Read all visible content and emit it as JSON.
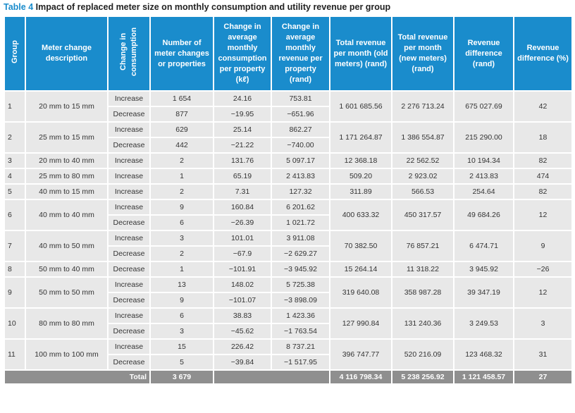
{
  "caption": {
    "label": "Table 4",
    "title": "Impact of replaced meter size on monthly consumption and utility revenue per group"
  },
  "table": {
    "headers": [
      "Group",
      "Meter change description",
      "Change in consumption",
      "Number of meter changes or properties",
      "Change in average monthly consumption per property (kℓ)",
      "Change in average monthly revenue per property (rand)",
      "Total revenue per month (old meters) (rand)",
      "Total revenue per month (new meters) (rand)",
      "Revenue difference (rand)",
      "Revenue difference (%)"
    ],
    "groups": [
      {
        "group": "1",
        "description": "20 mm to 15 mm",
        "changes": [
          {
            "direction": "Increase",
            "count": "1 654",
            "consumption": "24.16",
            "revenue": "753.81"
          },
          {
            "direction": "Decrease",
            "count": "877",
            "consumption": "−19.95",
            "revenue": "−651.96"
          }
        ],
        "total_old": "1 601 685.56",
        "total_new": "2 276 713.24",
        "difference": "675 027.69",
        "difference_pct": "42"
      },
      {
        "group": "2",
        "description": "25 mm to 15 mm",
        "changes": [
          {
            "direction": "Increase",
            "count": "629",
            "consumption": "25.14",
            "revenue": "862.27"
          },
          {
            "direction": "Decrease",
            "count": "442",
            "consumption": "−21.22",
            "revenue": "−740.00"
          }
        ],
        "total_old": "1 171 264.87",
        "total_new": "1 386 554.87",
        "difference": "215 290.00",
        "difference_pct": "18"
      },
      {
        "group": "3",
        "description": "20 mm to 40 mm",
        "changes": [
          {
            "direction": "Increase",
            "count": "2",
            "consumption": "131.76",
            "revenue": "5 097.17"
          }
        ],
        "total_old": "12 368.18",
        "total_new": "22 562.52",
        "difference": "10 194.34",
        "difference_pct": "82"
      },
      {
        "group": "4",
        "description": "25 mm to 80 mm",
        "changes": [
          {
            "direction": "Increase",
            "count": "1",
            "consumption": "65.19",
            "revenue": "2 413.83"
          }
        ],
        "total_old": "509.20",
        "total_new": "2 923.02",
        "difference": "2 413.83",
        "difference_pct": "474"
      },
      {
        "group": "5",
        "description": "40 mm to 15 mm",
        "changes": [
          {
            "direction": "Increase",
            "count": "2",
            "consumption": "7.31",
            "revenue": "127.32"
          }
        ],
        "total_old": "311.89",
        "total_new": "566.53",
        "difference": "254.64",
        "difference_pct": "82"
      },
      {
        "group": "6",
        "description": "40 mm to 40 mm",
        "changes": [
          {
            "direction": "Increase",
            "count": "9",
            "consumption": "160.84",
            "revenue": "6 201.62"
          },
          {
            "direction": "Decrease",
            "count": "6",
            "consumption": "−26.39",
            "revenue": "1 021.72"
          }
        ],
        "total_old": "400 633.32",
        "total_new": "450 317.57",
        "difference": "49 684.26",
        "difference_pct": "12"
      },
      {
        "group": "7",
        "description": "40 mm to 50 mm",
        "changes": [
          {
            "direction": "Increase",
            "count": "3",
            "consumption": "101.01",
            "revenue": "3 911.08"
          },
          {
            "direction": "Decrease",
            "count": "2",
            "consumption": "−67.9",
            "revenue": "−2 629.27"
          }
        ],
        "total_old": "70 382.50",
        "total_new": "76 857.21",
        "difference": "6 474.71",
        "difference_pct": "9"
      },
      {
        "group": "8",
        "description": "50 mm to 40 mm",
        "changes": [
          {
            "direction": "Decrease",
            "count": "1",
            "consumption": "−101.91",
            "revenue": "−3 945.92"
          }
        ],
        "total_old": "15 264.14",
        "total_new": "11 318.22",
        "difference": "3 945.92",
        "difference_pct": "−26"
      },
      {
        "group": "9",
        "description": "50 mm to 50 mm",
        "changes": [
          {
            "direction": "Increase",
            "count": "13",
            "consumption": "148.02",
            "revenue": "5 725.38"
          },
          {
            "direction": "Decrease",
            "count": "9",
            "consumption": "−101.07",
            "revenue": "−3 898.09"
          }
        ],
        "total_old": "319 640.08",
        "total_new": "358 987.28",
        "difference": "39 347.19",
        "difference_pct": "12"
      },
      {
        "group": "10",
        "description": "80 mm to 80 mm",
        "changes": [
          {
            "direction": "Increase",
            "count": "6",
            "consumption": "38.83",
            "revenue": "1 423.36"
          },
          {
            "direction": "Decrease",
            "count": "3",
            "consumption": "−45.62",
            "revenue": "−1 763.54"
          }
        ],
        "total_old": "127 990.84",
        "total_new": "131 240.36",
        "difference": "3 249.53",
        "difference_pct": "3"
      },
      {
        "group": "11",
        "description": "100 mm to 100 mm",
        "changes": [
          {
            "direction": "Increase",
            "count": "15",
            "consumption": "226.42",
            "revenue": "8 737.21"
          },
          {
            "direction": "Decrease",
            "count": "5",
            "consumption": "−39.84",
            "revenue": "−1 517.95"
          }
        ],
        "total_old": "396 747.77",
        "total_new": "520 216.09",
        "difference": "123 468.32",
        "difference_pct": "31"
      }
    ],
    "total": {
      "label": "Total",
      "count": "3 679",
      "total_old": "4 116 798.34",
      "total_new": "5 238 256.92",
      "difference": "1 121 458.57",
      "difference_pct": "27"
    }
  }
}
